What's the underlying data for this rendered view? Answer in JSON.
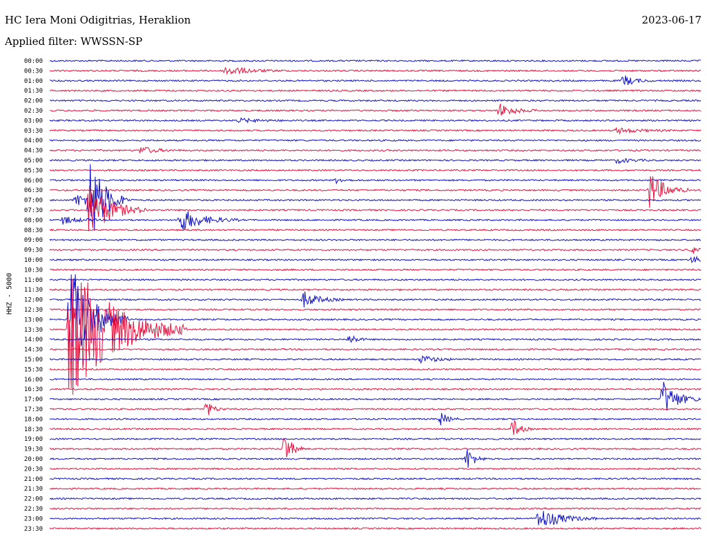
{
  "header": {
    "station": "HC Iera Moni Odigitrias, Heraklion",
    "date": "2023-06-17",
    "filter": "Applied filter: WWSSN-SP"
  },
  "chart_data": {
    "type": "line",
    "title": "HC Iera Moni Odigitrias, Heraklion",
    "ylabel": "HHZ - 5000",
    "colors": {
      "even": "#1010c8",
      "odd": "#e8103c"
    },
    "rows": [
      "00:00",
      "00:30",
      "01:00",
      "01:30",
      "02:00",
      "02:30",
      "03:00",
      "03:30",
      "04:00",
      "04:30",
      "05:00",
      "05:30",
      "06:00",
      "06:30",
      "07:00",
      "07:30",
      "08:00",
      "08:30",
      "09:00",
      "09:30",
      "10:00",
      "10:30",
      "11:00",
      "11:30",
      "12:00",
      "12:30",
      "13:00",
      "13:30",
      "14:00",
      "14:30",
      "15:00",
      "15:30",
      "16:00",
      "16:30",
      "17:00",
      "17:30",
      "18:00",
      "18:30",
      "19:00",
      "19:30",
      "20:00",
      "20:30",
      "21:00",
      "21:30",
      "22:00",
      "22:30",
      "23:00",
      "23:30"
    ],
    "events": [
      {
        "row": 1,
        "x": 0.27,
        "amp": 7,
        "dur": 0.03
      },
      {
        "row": 2,
        "x": 0.88,
        "amp": 9,
        "dur": 0.015
      },
      {
        "row": 5,
        "x": 0.69,
        "amp": 10,
        "dur": 0.02
      },
      {
        "row": 6,
        "x": 0.29,
        "amp": 3,
        "dur": 0.03
      },
      {
        "row": 7,
        "x": 0.87,
        "amp": 4,
        "dur": 0.03
      },
      {
        "row": 9,
        "x": 0.14,
        "amp": 6,
        "dur": 0.02
      },
      {
        "row": 10,
        "x": 0.87,
        "amp": 4,
        "dur": 0.02
      },
      {
        "row": 12,
        "x": 0.44,
        "amp": 4,
        "dur": 0.01
      },
      {
        "row": 13,
        "x": 0.92,
        "amp": 28,
        "dur": 0.02
      },
      {
        "row": 14,
        "x": 0.04,
        "amp": 9,
        "dur": 0.03
      },
      {
        "row": 14,
        "x": 0.06,
        "amp": 70,
        "dur": 0.02
      },
      {
        "row": 15,
        "x": 0.06,
        "amp": 40,
        "dur": 0.03
      },
      {
        "row": 16,
        "x": 0.02,
        "amp": 6,
        "dur": 0.02
      },
      {
        "row": 16,
        "x": 0.2,
        "amp": 18,
        "dur": 0.03
      },
      {
        "row": 19,
        "x": 0.985,
        "amp": 5,
        "dur": 0.02
      },
      {
        "row": 20,
        "x": 0.985,
        "amp": 5,
        "dur": 0.02
      },
      {
        "row": 24,
        "x": 0.39,
        "amp": 12,
        "dur": 0.02
      },
      {
        "row": 26,
        "x": 0.03,
        "amp": 90,
        "dur": 0.03
      },
      {
        "row": 27,
        "x": 0.03,
        "amp": 110,
        "dur": 0.06
      },
      {
        "row": 28,
        "x": 0.46,
        "amp": 8,
        "dur": 0.01
      },
      {
        "row": 30,
        "x": 0.57,
        "amp": 6,
        "dur": 0.02
      },
      {
        "row": 34,
        "x": 0.94,
        "amp": 28,
        "dur": 0.02
      },
      {
        "row": 35,
        "x": 0.24,
        "amp": 12,
        "dur": 0.01
      },
      {
        "row": 36,
        "x": 0.6,
        "amp": 10,
        "dur": 0.01
      },
      {
        "row": 37,
        "x": 0.71,
        "amp": 16,
        "dur": 0.01
      },
      {
        "row": 39,
        "x": 0.36,
        "amp": 26,
        "dur": 0.01
      },
      {
        "row": 40,
        "x": 0.64,
        "amp": 18,
        "dur": 0.01
      },
      {
        "row": 46,
        "x": 0.75,
        "amp": 16,
        "dur": 0.03
      }
    ]
  }
}
